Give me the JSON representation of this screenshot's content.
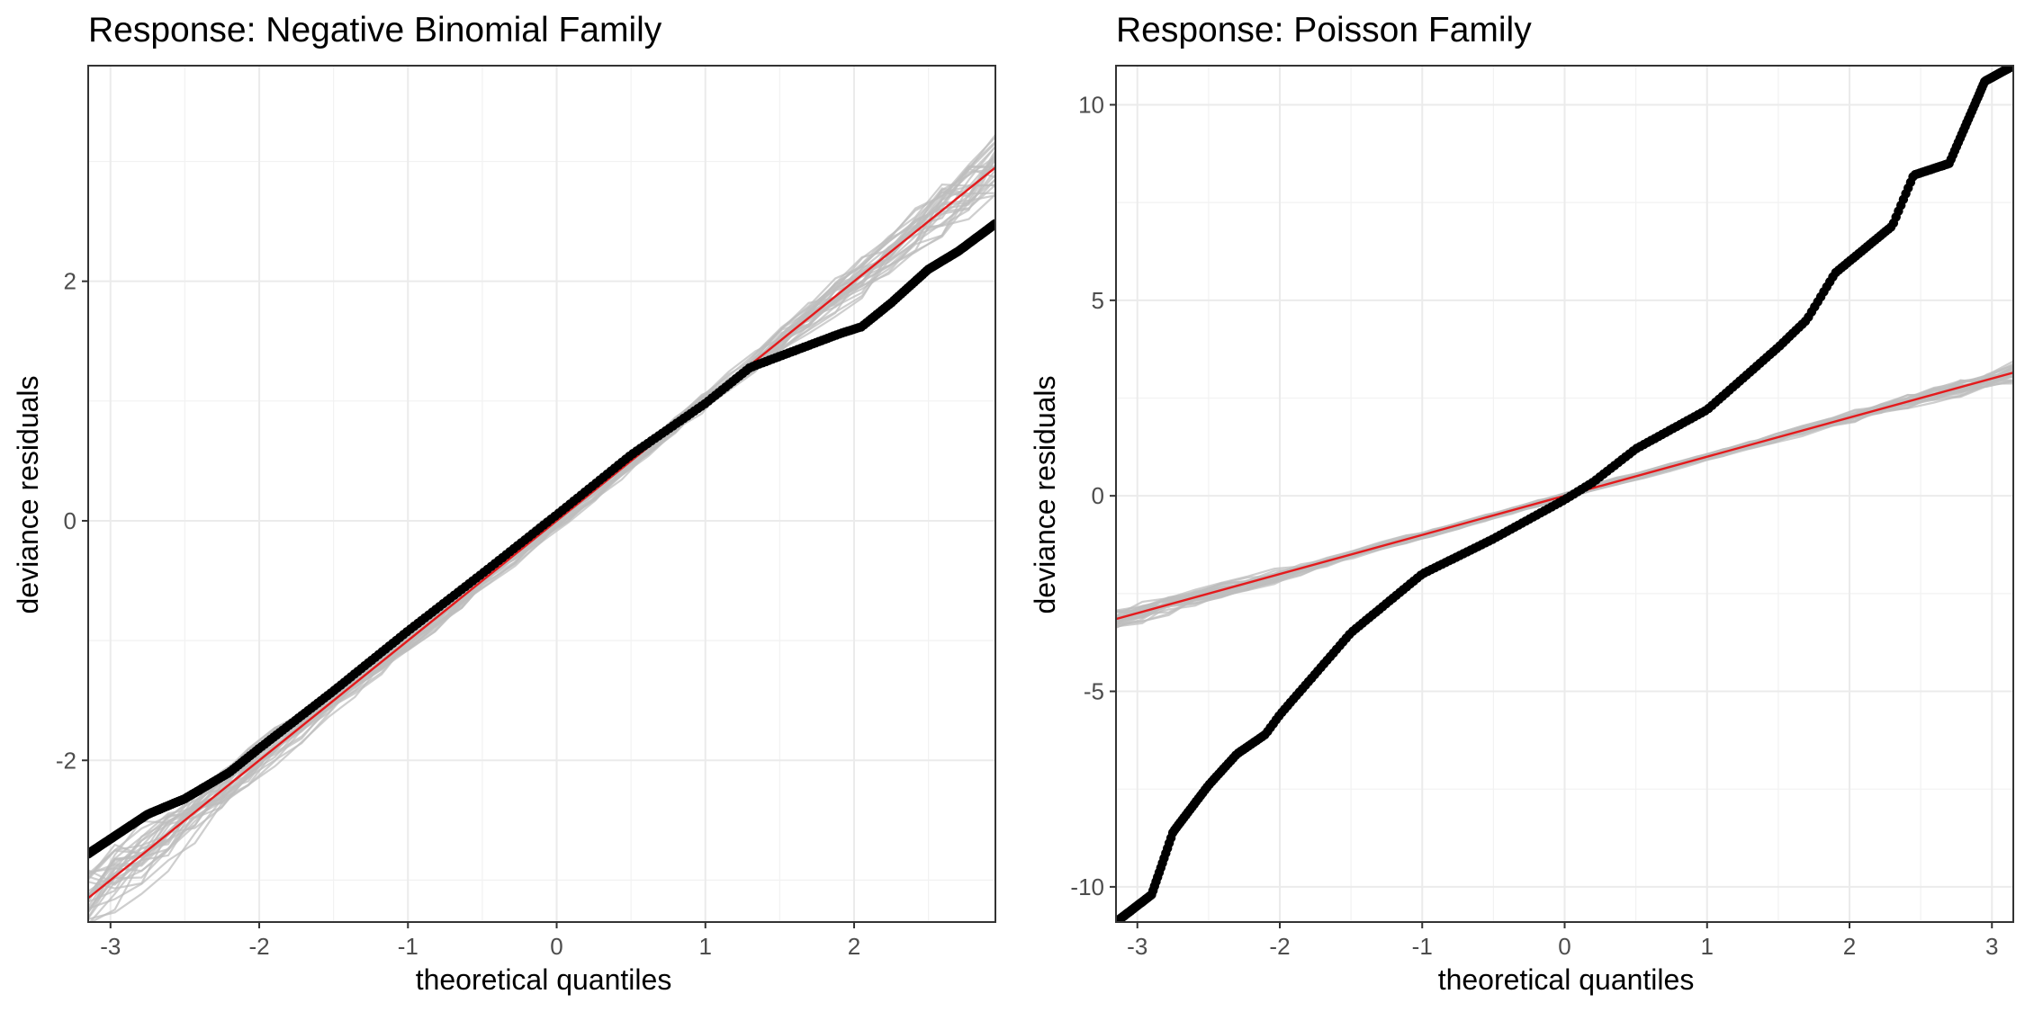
{
  "chart_data": [
    {
      "type": "scatter",
      "title": "Response: Negative Binomial Family",
      "xlabel": "theoretical quantiles",
      "ylabel": "deviance residuals",
      "xlim": [
        -3.15,
        2.95
      ],
      "ylim": [
        -3.35,
        3.8
      ],
      "x_ticks": [
        -3,
        -2,
        -1,
        0,
        1,
        2
      ],
      "y_ticks": [
        -2,
        0,
        2
      ],
      "grid": true,
      "legend": "none",
      "colors": {
        "points": "#000000",
        "reference_line": "#e41a1c",
        "simulations": "#bdbdbd"
      },
      "reference_line": {
        "slope": 1.0,
        "intercept": 0.0
      },
      "simulation_count": 30,
      "simulation_spread": 0.12,
      "observed_points": {
        "quantiles": [
          -3.15,
          -2.75,
          -2.5,
          -2.2,
          -2.0,
          -1.5,
          -1.0,
          -0.5,
          0.0,
          0.5,
          1.0,
          1.3,
          1.6,
          1.9,
          2.05,
          2.25,
          2.5,
          2.7,
          2.95
        ],
        "residuals": [
          -2.78,
          -2.45,
          -2.32,
          -2.1,
          -1.9,
          -1.42,
          -0.92,
          -0.44,
          0.05,
          0.55,
          0.98,
          1.28,
          1.42,
          1.56,
          1.62,
          1.82,
          2.1,
          2.25,
          2.48
        ]
      }
    },
    {
      "type": "scatter",
      "title": "Response: Poisson Family",
      "xlabel": "theoretical quantiles",
      "ylabel": "deviance residuals",
      "xlim": [
        -3.15,
        3.15
      ],
      "ylim": [
        -10.9,
        11.0
      ],
      "x_ticks": [
        -3,
        -2,
        -1,
        0,
        1,
        2,
        3
      ],
      "y_ticks": [
        -10,
        -5,
        0,
        5,
        10
      ],
      "grid": true,
      "legend": "none",
      "colors": {
        "points": "#000000",
        "reference_line": "#e41a1c",
        "simulations": "#bdbdbd"
      },
      "reference_line": {
        "slope": 1.0,
        "intercept": 0.0
      },
      "simulation_count": 30,
      "simulation_spread": 0.12,
      "observed_points": {
        "quantiles": [
          -3.15,
          -2.9,
          -2.75,
          -2.5,
          -2.3,
          -2.1,
          -2.0,
          -1.5,
          -1.0,
          -0.5,
          0.0,
          0.2,
          0.5,
          1.0,
          1.5,
          1.7,
          1.9,
          2.1,
          2.3,
          2.45,
          2.7,
          2.95,
          3.15
        ],
        "residuals": [
          -10.9,
          -10.2,
          -8.6,
          -7.4,
          -6.6,
          -6.1,
          -5.6,
          -3.5,
          -2.0,
          -1.1,
          -0.1,
          0.35,
          1.2,
          2.2,
          3.8,
          4.5,
          5.7,
          6.3,
          6.9,
          8.2,
          8.5,
          10.6,
          11.0
        ]
      }
    }
  ]
}
